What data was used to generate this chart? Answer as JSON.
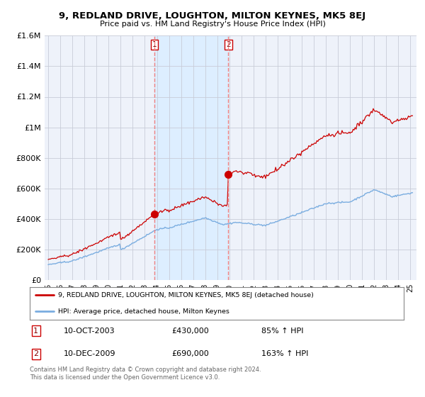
{
  "title": "9, REDLAND DRIVE, LOUGHTON, MILTON KEYNES, MK5 8EJ",
  "subtitle": "Price paid vs. HM Land Registry's House Price Index (HPI)",
  "ylim": [
    0,
    1600000
  ],
  "yticks": [
    0,
    200000,
    400000,
    600000,
    800000,
    1000000,
    1200000,
    1400000,
    1600000
  ],
  "ytick_labels": [
    "£0",
    "£200K",
    "£400K",
    "£600K",
    "£800K",
    "£1M",
    "£1.2M",
    "£1.4M",
    "£1.6M"
  ],
  "sale1_x": 2003.78,
  "sale1_price": 430000,
  "sale2_x": 2009.92,
  "sale2_price": 690000,
  "xmin": 1995.0,
  "xmax": 2025.5,
  "legend_house": "9, REDLAND DRIVE, LOUGHTON, MILTON KEYNES, MK5 8EJ (detached house)",
  "legend_hpi": "HPI: Average price, detached house, Milton Keynes",
  "legend1_num": "1",
  "legend1_date": "10-OCT-2003",
  "legend1_price": "£430,000",
  "legend1_pct": "85% ↑ HPI",
  "legend2_num": "2",
  "legend2_date": "10-DEC-2009",
  "legend2_price": "£690,000",
  "legend2_pct": "163% ↑ HPI",
  "footnote": "Contains HM Land Registry data © Crown copyright and database right 2024.\nThis data is licensed under the Open Government Licence v3.0.",
  "house_color": "#cc0000",
  "hpi_color": "#7aade0",
  "vline_color": "#f08080",
  "shade_color": "#ddeeff",
  "bg_color": "#eef2fa",
  "grid_color": "#c8ccd8"
}
